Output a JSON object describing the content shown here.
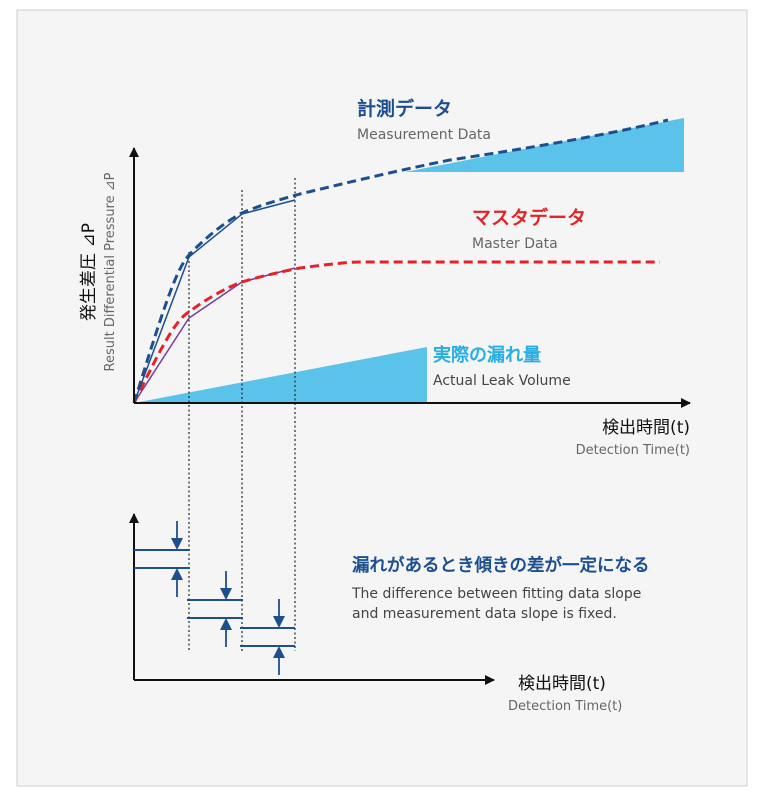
{
  "colors": {
    "panel_bg": "#f5f5f5",
    "panel_border": "#cfcfcf",
    "measurement": "#1d4f8f",
    "master": "#e52228",
    "leak": "#5bc2ea",
    "leak_text": "#27aee3",
    "axis": "#111111",
    "gray_text": "#666666"
  },
  "top_chart": {
    "y_axis_label_jp": "発生差圧 ⊿P",
    "y_axis_label_en": "Result Differential Pressure ⊿P",
    "x_axis_label_jp": "検出時間(t)",
    "x_axis_label_en": "Detection Time(t)",
    "measurement_label_jp": "計測データ",
    "measurement_label_en": "Measurement Data",
    "master_label_jp": "マスタデータ",
    "master_label_en": "Master Data",
    "leak_label_jp": "実際の漏れ量",
    "leak_label_en": "Actual Leak Volume"
  },
  "bottom_chart": {
    "caption_jp": "漏れがあるとき傾きの差が一定になる",
    "caption_en_line1": "The difference between fitting data slope",
    "caption_en_line2": "and measurement data slope is fixed.",
    "x_axis_label_jp": "検出時間(t)",
    "x_axis_label_en": "Detection Time(t)"
  }
}
